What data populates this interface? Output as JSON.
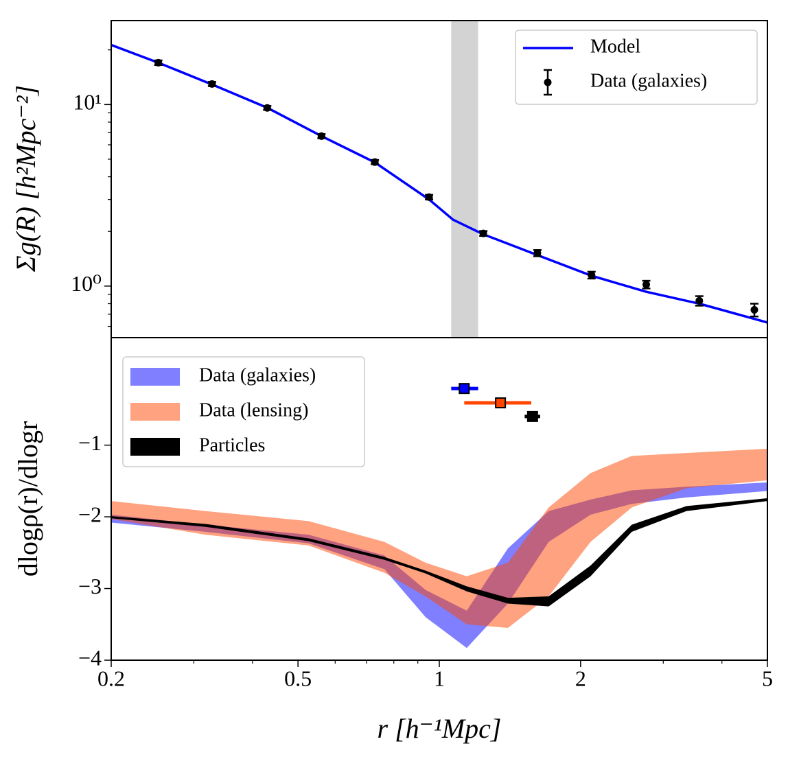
{
  "chart_data": [
    {
      "type": "line",
      "ylabel": "Σg(R) [h²Mpc⁻²]",
      "xscale": "log",
      "yscale": "log",
      "xlim": [
        0.2,
        5
      ],
      "ylim": [
        0.52,
        29
      ],
      "yticks": [
        {
          "value": 1,
          "label": "10⁰"
        },
        {
          "value": 10,
          "label": "10¹"
        }
      ],
      "shaded_region": [
        1.06,
        1.21
      ],
      "shaded_color": "#d3d3d3",
      "legend": "upper right",
      "series": [
        {
          "name": "Model",
          "style": "line",
          "color": "#0000ff",
          "x": [
            0.2,
            0.252,
            0.328,
            0.43,
            0.561,
            0.729,
            0.951,
            1.07,
            1.24,
            1.62,
            2.11,
            2.76,
            3.58,
            5
          ],
          "values": [
            21.3,
            17.0,
            12.9,
            9.6,
            6.7,
            4.8,
            3.0,
            2.32,
            1.93,
            1.48,
            1.14,
            0.93,
            0.8,
            0.63
          ]
        },
        {
          "name": "Data (galaxies)",
          "style": "errorbar",
          "color": "#000000",
          "x": [
            0.252,
            0.328,
            0.43,
            0.561,
            0.729,
            0.951,
            1.241,
            1.618,
            2.11,
            2.76,
            3.58,
            4.69
          ],
          "values": [
            17.0,
            12.98,
            9.58,
            6.7,
            4.82,
            3.09,
            1.95,
            1.52,
            1.15,
            1.02,
            0.83,
            0.74
          ],
          "errors": [
            0.5,
            0.35,
            0.25,
            0.18,
            0.13,
            0.09,
            0.06,
            0.06,
            0.05,
            0.05,
            0.05,
            0.06
          ]
        }
      ]
    },
    {
      "type": "area",
      "xlabel": "r [h⁻¹Mpc]",
      "ylabel": "dlogρ(r)/dlogr",
      "xscale": "log",
      "yscale": "linear",
      "xlim": [
        0.2,
        5
      ],
      "ylim": [
        -4,
        0.5
      ],
      "xticks": [
        0.2,
        0.5,
        1,
        2,
        5
      ],
      "yticks": [
        {
          "value": -4,
          "label": "−4"
        },
        {
          "value": -3,
          "label": "−3"
        },
        {
          "value": -2,
          "label": "−2"
        },
        {
          "value": -1,
          "label": "−1"
        }
      ],
      "legend": "upper left",
      "x": [
        0.2,
        0.318,
        0.527,
        0.764,
        0.935,
        1.144,
        1.4,
        1.71,
        2.1,
        2.57,
        3.36,
        5
      ],
      "series": [
        {
          "name": "Data (galaxies)",
          "color": "#0000ff",
          "alpha": 0.5,
          "upper": [
            -1.97,
            -2.11,
            -2.25,
            -2.54,
            -3.02,
            -3.31,
            -2.44,
            -1.92,
            -1.76,
            -1.63,
            -1.58,
            -1.52
          ],
          "lower": [
            -2.08,
            -2.21,
            -2.37,
            -2.73,
            -3.4,
            -3.83,
            -3.21,
            -2.35,
            -1.97,
            -1.82,
            -1.73,
            -1.64
          ]
        },
        {
          "name": "Data (lensing)",
          "color": "#ff4500",
          "alpha": 0.5,
          "upper": [
            -1.78,
            -1.92,
            -2.06,
            -2.35,
            -2.64,
            -2.83,
            -2.64,
            -1.87,
            -1.39,
            -1.15,
            -1.11,
            -1.05
          ],
          "lower": [
            -2.03,
            -2.25,
            -2.4,
            -2.78,
            -3.11,
            -3.5,
            -3.55,
            -3.11,
            -2.35,
            -1.87,
            -1.6,
            -1.49
          ]
        },
        {
          "name": "Particles",
          "color": "#000000",
          "alpha": 1,
          "upper": [
            -1.99,
            -2.1,
            -2.3,
            -2.56,
            -2.75,
            -2.97,
            -3.13,
            -3.11,
            -2.68,
            -2.11,
            -1.85,
            -1.74
          ],
          "lower": [
            -2.02,
            -2.14,
            -2.34,
            -2.6,
            -2.79,
            -3.04,
            -3.21,
            -3.25,
            -2.83,
            -2.21,
            -1.92,
            -1.78
          ]
        }
      ],
      "points": [
        {
          "color": "#0000ff",
          "x": 1.13,
          "y": -0.21,
          "xerr_low": 1.06,
          "xerr_high": 1.21
        },
        {
          "color": "#ff4500",
          "x": 1.35,
          "y": -0.41,
          "xerr_low": 1.13,
          "xerr_high": 1.57
        },
        {
          "color": "#000000",
          "x": 1.58,
          "y": -0.6,
          "xerr_low": 1.52,
          "xerr_high": 1.64
        }
      ]
    }
  ]
}
